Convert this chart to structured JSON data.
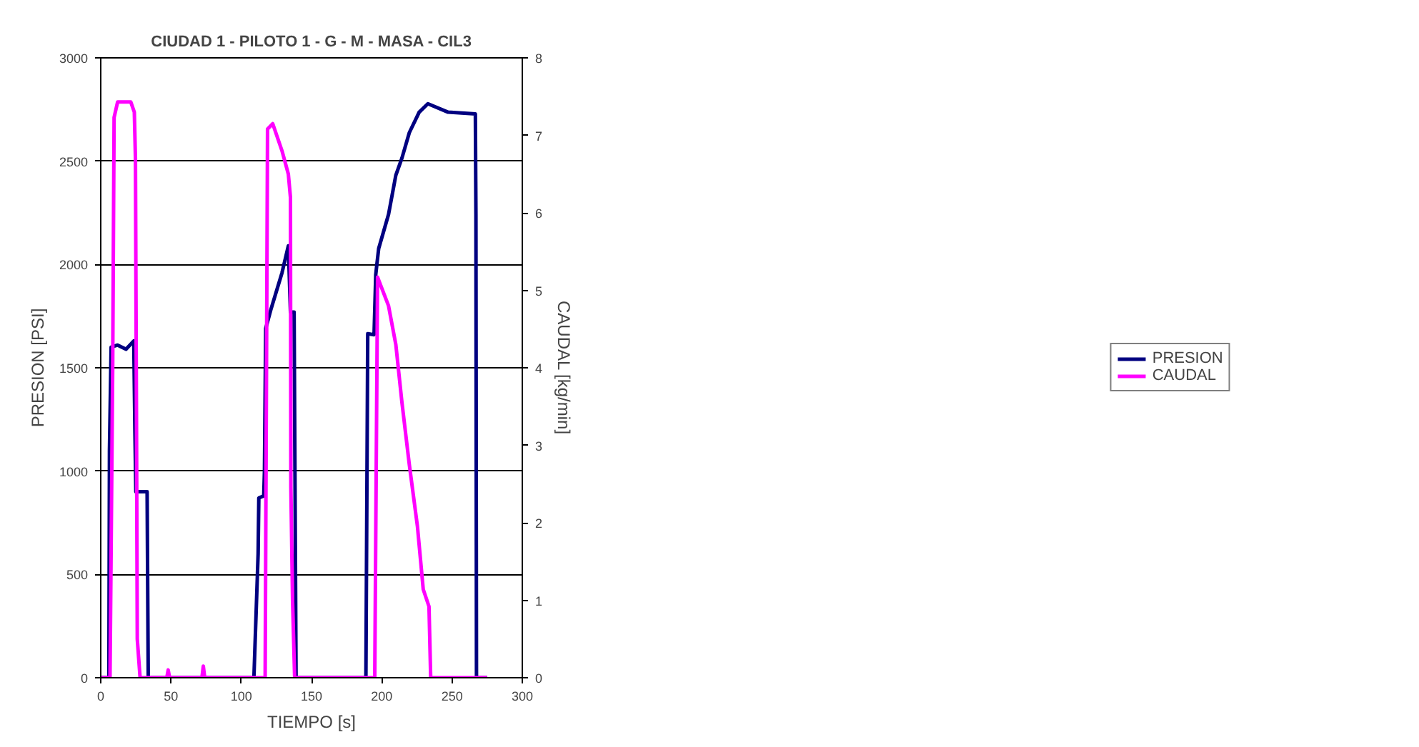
{
  "chart_data": {
    "type": "line",
    "title": "CIUDAD 1 - PILOTO 1 - G - M - MASA - CIL3",
    "xlabel": "TIEMPO [s]",
    "ylabel": "PRESION [PSI]",
    "y2label": "CAUDAL [kg/min]",
    "xlim": [
      0,
      300
    ],
    "xticks": [
      0,
      50,
      100,
      150,
      200,
      250,
      300
    ],
    "ylim": [
      0,
      3000
    ],
    "yticks": [
      0,
      500,
      1000,
      1500,
      2000,
      2500,
      3000
    ],
    "y2lim": [
      0,
      8
    ],
    "y2ticks": [
      0,
      1,
      2,
      3,
      4,
      5,
      6,
      7,
      8
    ],
    "grid": "y",
    "legend": "right",
    "marker": "none",
    "line_style": "solid",
    "series": [
      {
        "name": "PRESION",
        "color": "#000080",
        "x": [
          0,
          5.8,
          6.2,
          7.4,
          12,
          18,
          23.5,
          24.3,
          25,
          33,
          33.8,
          109,
          112,
          112.5,
          116,
          116.5,
          117.4,
          121,
          125,
          129,
          133.5,
          135,
          137.6,
          139,
          188.7,
          190,
          194.5,
          195.7,
          196.5,
          197.8,
          204.8,
          210,
          214.3,
          219.6,
          226.6,
          232.8,
          247.2,
          266.6,
          267,
          267.4,
          275
        ],
        "values": [
          0,
          0,
          1100,
          1600,
          1610,
          1590,
          1630,
          1200,
          900,
          900,
          0,
          0,
          600,
          870,
          880,
          1000,
          1690,
          1780,
          1870,
          1960,
          2090,
          1770,
          1770,
          0,
          0,
          1665,
          1660,
          1950,
          2000,
          2077,
          2242,
          2432,
          2514,
          2638,
          2737,
          2778,
          2737,
          2729,
          2242,
          0,
          0
        ]
      },
      {
        "name": "CAUDAL",
        "color": "#ff00ff",
        "axis": "y2",
        "x": [
          0,
          6.6,
          8.5,
          9.5,
          12,
          21.4,
          23.9,
          24.7,
          25.5,
          26,
          28,
          47,
          48,
          49,
          72,
          73,
          74,
          117,
          118.7,
          122.4,
          129,
          133.5,
          135,
          135.3,
          136.5,
          138,
          195,
          197,
          204.8,
          210,
          214.3,
          219.6,
          225.4,
          229.5,
          233.6,
          234.8,
          275
        ],
        "values": [
          0,
          0,
          4,
          7.23,
          7.43,
          7.43,
          7.3,
          6.7,
          3,
          0.5,
          0,
          0,
          0.1,
          0,
          0,
          0.15,
          0,
          0,
          7.08,
          7.15,
          6.8,
          6.5,
          6.2,
          2.46,
          1,
          0,
          0,
          5.17,
          4.8,
          4.3,
          3.56,
          2.75,
          1.95,
          1.14,
          0.92,
          0,
          0
        ]
      }
    ]
  }
}
